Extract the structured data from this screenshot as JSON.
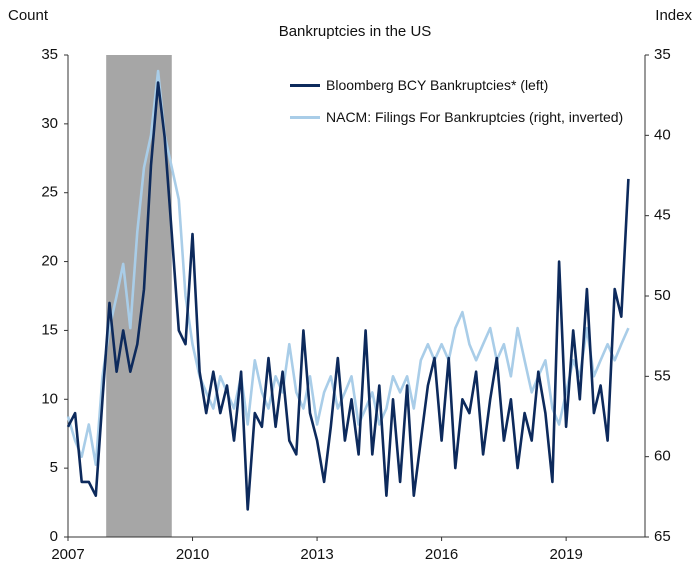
{
  "chart_data": {
    "type": "line",
    "title": "Bankruptcies in the US",
    "y_label": "Count",
    "y2_label": "Index",
    "x": [
      2007,
      2007.17,
      2007.33,
      2007.5,
      2007.67,
      2007.83,
      2008,
      2008.17,
      2008.33,
      2008.5,
      2008.67,
      2008.83,
      2009,
      2009.17,
      2009.33,
      2009.5,
      2009.67,
      2009.83,
      2010,
      2010.17,
      2010.33,
      2010.5,
      2010.67,
      2010.83,
      2011,
      2011.17,
      2011.33,
      2011.5,
      2011.67,
      2011.83,
      2012,
      2012.17,
      2012.33,
      2012.5,
      2012.67,
      2012.83,
      2013,
      2013.17,
      2013.33,
      2013.5,
      2013.67,
      2013.83,
      2014,
      2014.17,
      2014.33,
      2014.5,
      2014.67,
      2014.83,
      2015,
      2015.17,
      2015.33,
      2015.5,
      2015.67,
      2015.83,
      2016,
      2016.17,
      2016.33,
      2016.5,
      2016.67,
      2016.83,
      2017,
      2017.17,
      2017.33,
      2017.5,
      2017.67,
      2017.83,
      2018,
      2018.17,
      2018.33,
      2018.5,
      2018.67,
      2018.83,
      2019,
      2019.17,
      2019.33,
      2019.5,
      2019.67,
      2019.83,
      2020,
      2020.17,
      2020.33,
      2020.5
    ],
    "series": [
      {
        "name": "Bloomberg BCY Bankruptcies* (left)",
        "color": "#0d2a5c",
        "axis": "y",
        "values": [
          8,
          9,
          4,
          4,
          3,
          10,
          17,
          12,
          15,
          12,
          14,
          18,
          27,
          33,
          29,
          22,
          15,
          14,
          22,
          12,
          9,
          12,
          9,
          11,
          7,
          12,
          2,
          9,
          8,
          13,
          8,
          12,
          7,
          6,
          15,
          9,
          7,
          4,
          8,
          13,
          7,
          10,
          6,
          15,
          6,
          11,
          3,
          10,
          4,
          11,
          3,
          7,
          11,
          13,
          7,
          13,
          5,
          10,
          9,
          12,
          6,
          10,
          13,
          7,
          10,
          5,
          9,
          7,
          12,
          9,
          4,
          20,
          8,
          15,
          10,
          18,
          9,
          11,
          7,
          18,
          16,
          26
        ]
      },
      {
        "name": "NACM: Filings For Bankruptcies (right, inverted)",
        "color": "#a9cde8",
        "axis": "y2",
        "values": [
          57.5,
          59,
          60,
          58,
          60.5,
          55,
          52,
          50,
          48,
          52,
          46,
          42,
          40,
          36,
          40,
          42,
          44,
          50,
          53,
          55,
          56,
          57,
          55,
          56,
          57,
          55,
          58,
          54,
          56,
          57,
          55,
          56,
          53,
          56,
          57,
          55,
          58,
          56,
          55,
          57,
          56,
          55,
          58,
          57,
          56,
          58,
          57,
          55,
          56,
          55,
          57,
          54,
          53,
          54,
          53,
          54,
          52,
          51,
          53,
          54,
          53,
          52,
          54,
          53,
          55,
          52,
          54,
          56,
          55,
          54,
          57,
          58,
          56,
          54,
          55,
          52,
          55,
          54,
          53,
          54,
          53,
          52
        ]
      }
    ],
    "shaded_region": [
      2007.92,
      2009.5
    ],
    "shade_color": "#a6a6a6",
    "xlim": [
      2007,
      2020.9
    ],
    "xticks": [
      2007,
      2010,
      2013,
      2016,
      2019
    ],
    "ylim": [
      0,
      35
    ],
    "yticks": [
      0,
      5,
      10,
      15,
      20,
      25,
      30,
      35
    ],
    "y2lim": [
      35,
      65
    ],
    "y2ticks": [
      35,
      40,
      45,
      50,
      55,
      60,
      65
    ],
    "y2_inverted": true,
    "legend": "top-right"
  }
}
